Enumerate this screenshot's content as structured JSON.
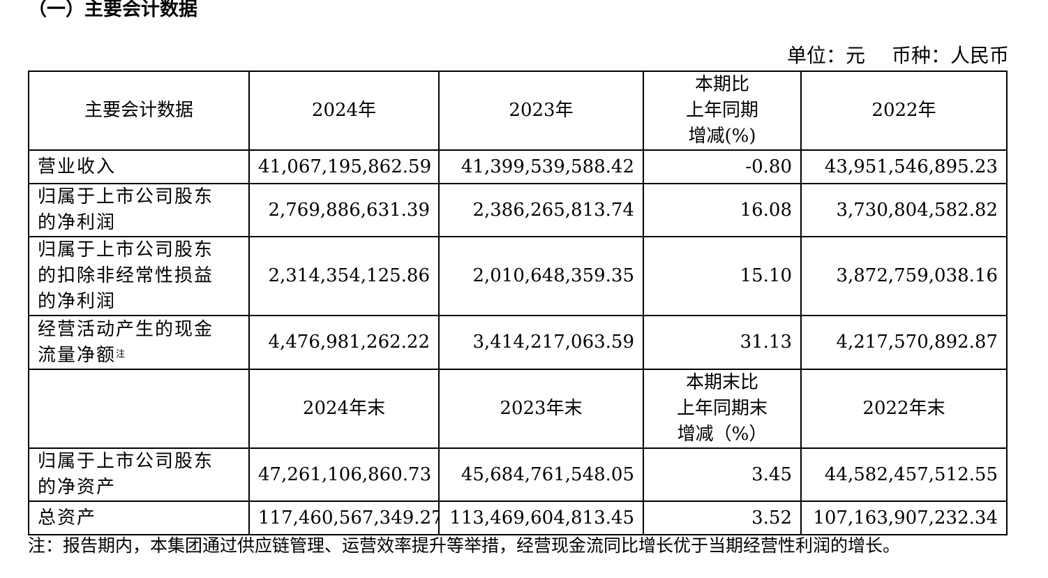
{
  "section_title": "（一）主要会计数据",
  "unit": {
    "unit_label": "单位：元",
    "currency_label": "币种：人民币"
  },
  "header1": {
    "metric": "主要会计数据",
    "c2024": "2024年",
    "c2023": "2023年",
    "change": [
      "本期比",
      "上年同期",
      "增减(%)"
    ],
    "c2022": "2022年"
  },
  "rows1": [
    {
      "label": [
        "营业收入"
      ],
      "note": "",
      "v2024": "41,067,195,862.59",
      "v2023": "41,399,539,588.42",
      "change": "-0.80",
      "v2022": "43,951,546,895.23"
    },
    {
      "label": [
        "归属于上市公司股东",
        "的净利润"
      ],
      "note": "",
      "v2024": "2,769,886,631.39",
      "v2023": "2,386,265,813.74",
      "change": "16.08",
      "v2022": "3,730,804,582.82"
    },
    {
      "label": [
        "归属于上市公司股东",
        "的扣除非经常性损益",
        "的净利润"
      ],
      "note": "",
      "v2024": "2,314,354,125.86",
      "v2023": "2,010,648,359.35",
      "change": "15.10",
      "v2022": "3,872,759,038.16"
    },
    {
      "label": [
        "经营活动产生的现金",
        "流量净额"
      ],
      "note": "注",
      "v2024": "4,476,981,262.22",
      "v2023": "3,414,217,063.59",
      "change": "31.13",
      "v2022": "4,217,570,892.87"
    }
  ],
  "header2": {
    "metric": "",
    "c2024": "2024年末",
    "c2023": "2023年末",
    "change": [
      "本期末比",
      "上年同期末",
      "增减（%）"
    ],
    "c2022": "2022年末"
  },
  "rows2": [
    {
      "label": [
        "归属于上市公司股东",
        "的净资产"
      ],
      "note": "",
      "v2024": "47,261,106,860.73",
      "v2023": "45,684,761,548.05",
      "change": "3.45",
      "v2022": "44,582,457,512.55"
    },
    {
      "label": [
        "总资产"
      ],
      "note": "",
      "v2024": "117,460,567,349.27",
      "v2023": "113,469,604,813.45",
      "change": "3.52",
      "v2022": "107,163,907,232.34"
    }
  ],
  "footnote": "注：报告期内，本集团通过供应链管理、运营效率提升等举措，经营现金流同比增长优于当期经营性利润的增长。"
}
